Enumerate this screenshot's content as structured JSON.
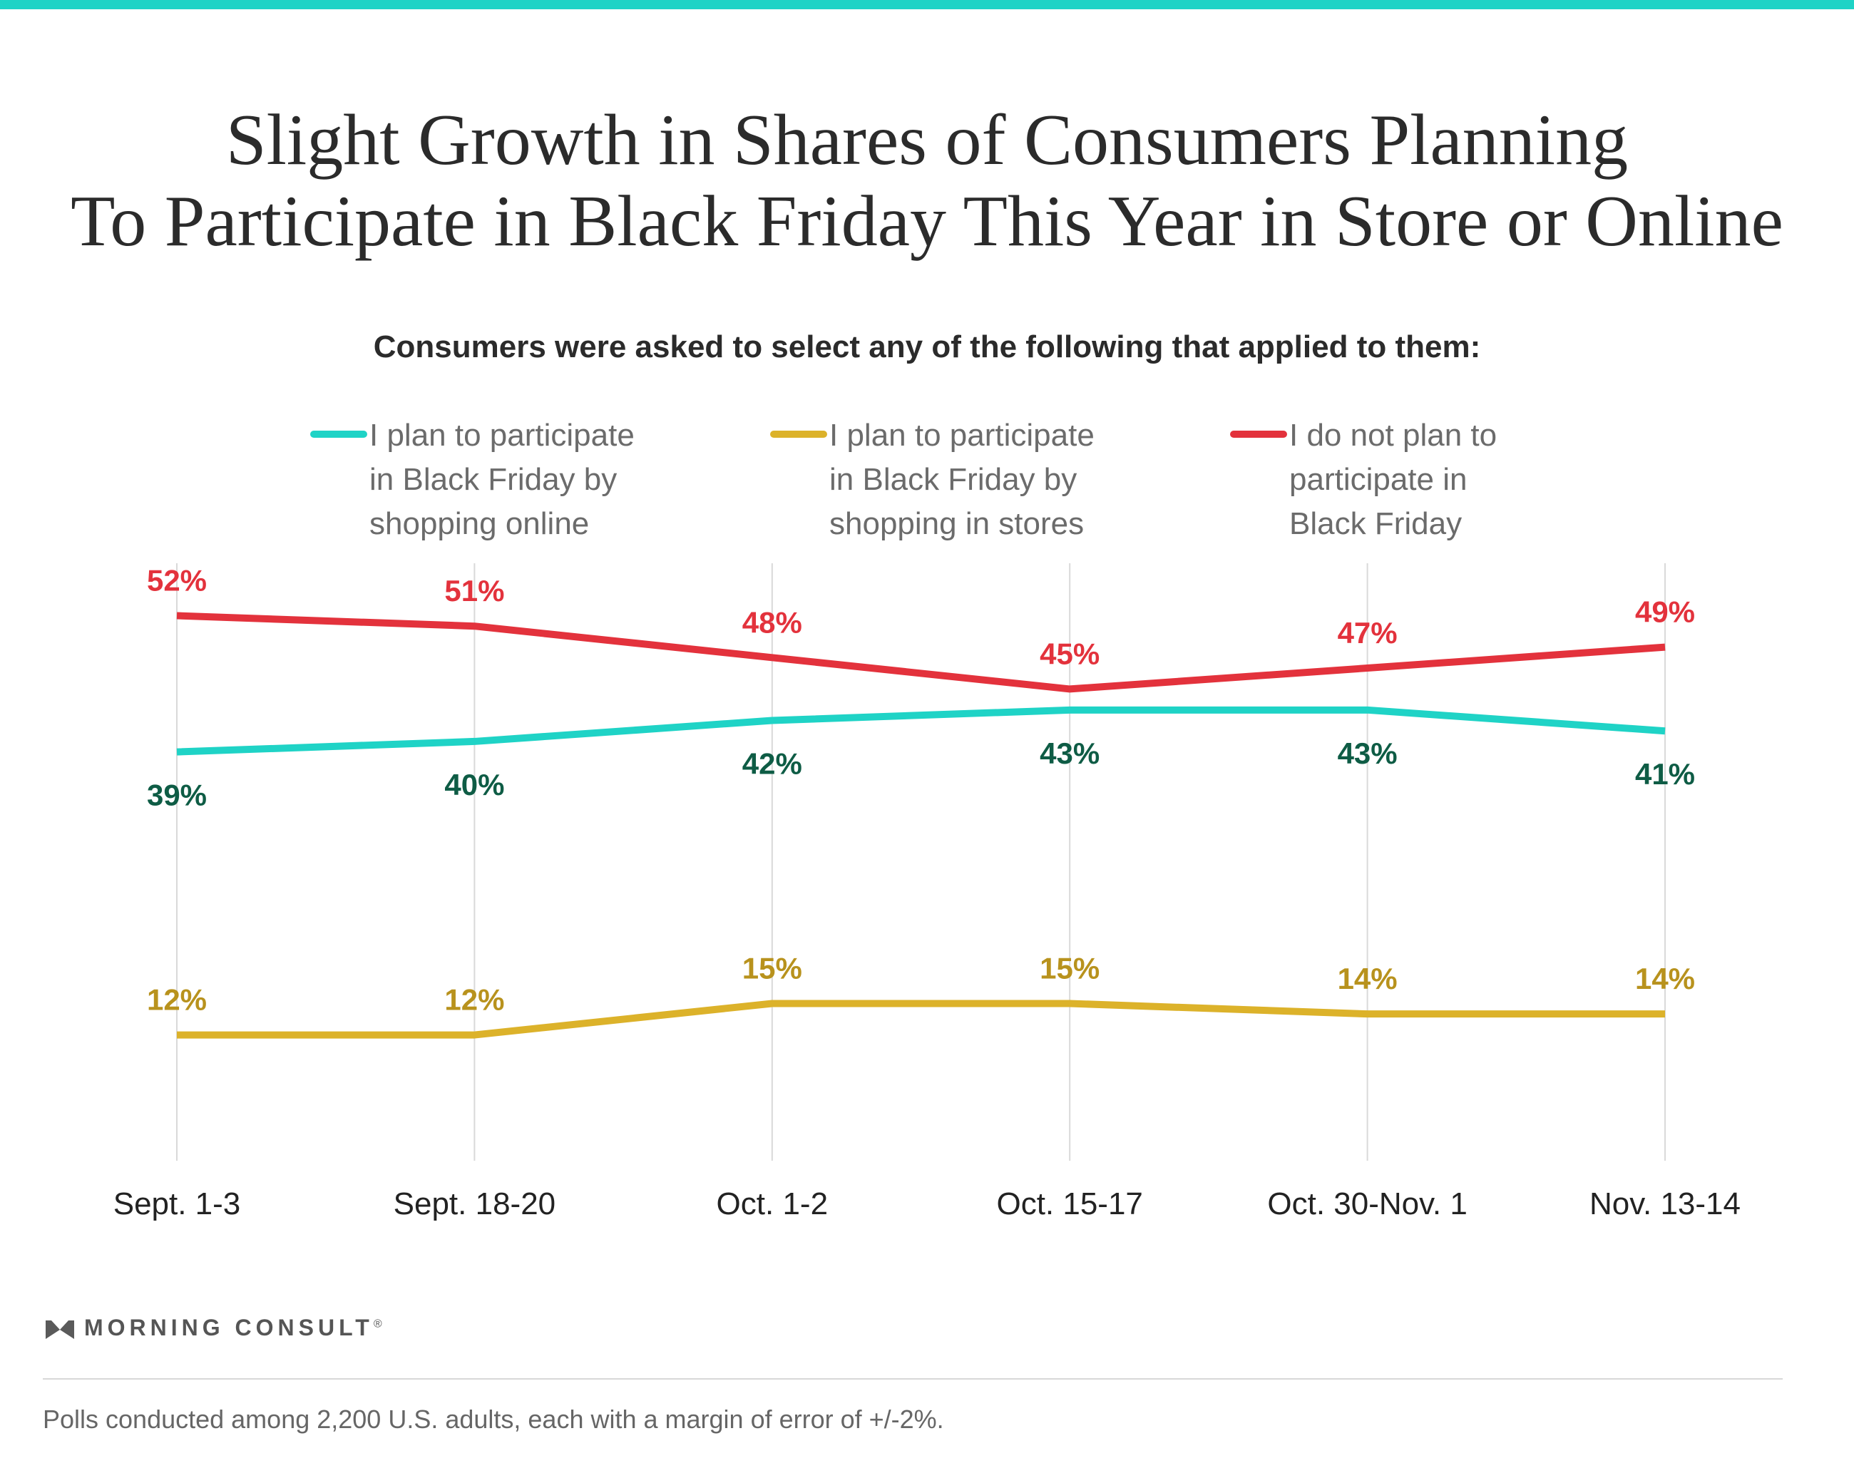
{
  "header": {
    "title_line1": "Slight Growth in Shares of Consumers Planning",
    "title_line2": "To Participate in Black Friday This Year in Store or Online",
    "subtitle": "Consumers were asked to select any of the following that applied to them:"
  },
  "legend": {
    "online_line1": "I plan to participate",
    "online_line2": "in Black Friday by",
    "online_line3": "shopping online",
    "stores_line1": "I plan to participate",
    "stores_line2": "in Black Friday by",
    "stores_line3": "shopping in stores",
    "notplan_line1": "I do not plan to",
    "notplan_line2": "participate in",
    "notplan_line3": "Black Friday"
  },
  "colors": {
    "accent_bar": "#1fd3c6",
    "online": "#1fd3c6",
    "online_label": "#0e5c45",
    "stores": "#dcb22a",
    "stores_label": "#b8921d",
    "not_plan": "#e3323c",
    "not_plan_label": "#e3323c",
    "gridline": "#d9d9d9"
  },
  "chart_data": {
    "type": "line",
    "x": [
      "Sept. 1-3",
      "Sept. 18-20",
      "Oct. 1-2",
      "Oct. 15-17",
      "Oct. 30-Nov. 1",
      "Nov. 13-14"
    ],
    "series": [
      {
        "name": "I plan to participate in Black Friday by shopping online",
        "values": [
          39,
          40,
          42,
          43,
          43,
          41
        ],
        "labels": [
          "39%",
          "40%",
          "42%",
          "43%",
          "43%",
          "41%"
        ]
      },
      {
        "name": "I plan to participate in Black Friday by shopping in stores",
        "values": [
          12,
          12,
          15,
          15,
          14,
          14
        ],
        "labels": [
          "12%",
          "12%",
          "15%",
          "15%",
          "14%",
          "14%"
        ]
      },
      {
        "name": "I do not plan to participate in Black Friday",
        "values": [
          52,
          51,
          48,
          45,
          47,
          49
        ],
        "labels": [
          "52%",
          "51%",
          "48%",
          "45%",
          "47%",
          "49%"
        ]
      }
    ],
    "ylim": [
      0,
      57
    ],
    "grid": "vertical",
    "legend_position": "top",
    "value_unit": "%"
  },
  "branding": {
    "name": "MORNING CONSULT",
    "mark": "®"
  },
  "footnote": "Polls conducted among 2,200 U.S. adults, each with a margin of error of +/-2%."
}
